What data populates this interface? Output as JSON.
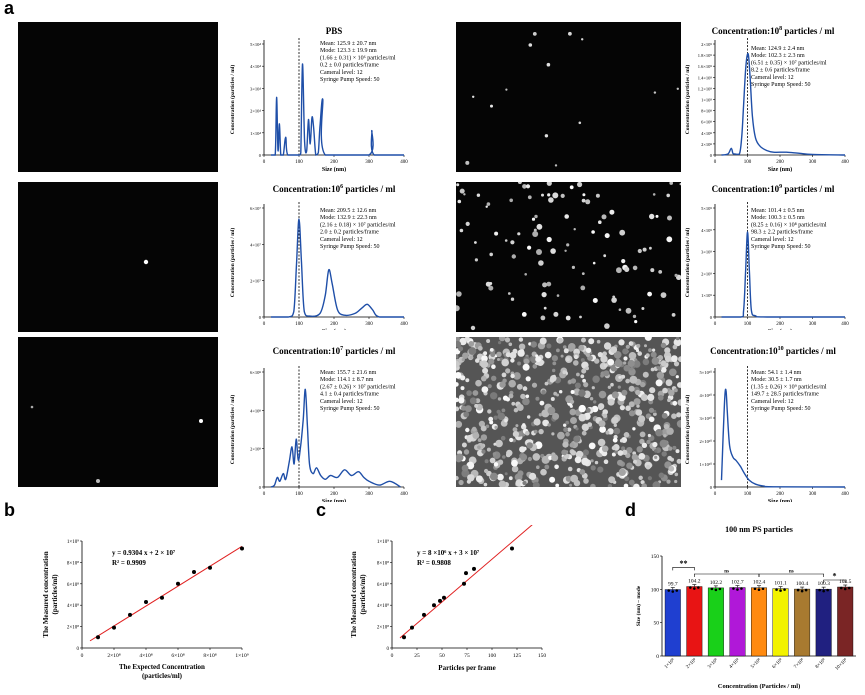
{
  "panel_labels": {
    "a": "a",
    "b": "b",
    "c": "c",
    "d": "d"
  },
  "nta_common": {
    "ylabel": "Concentration (particles / ml)",
    "xlabel": "Size (nm)",
    "xticks": [
      "0",
      "100",
      "200",
      "300",
      "400"
    ],
    "camera": "Cameral level: 12",
    "pump": "Syringe Pump Speed: 50"
  },
  "nta_plots": [
    {
      "id": "pbs",
      "title_main": "PBS",
      "title_sup": "",
      "title_suffix": "",
      "yticks": [
        "0",
        "1×10⁴",
        "2×10⁴",
        "3×10⁴",
        "4×10⁴",
        "5×10⁴"
      ],
      "ymax": 5,
      "stats": [
        "Mean: 125.9 ± 20.7 nm",
        "Mode: 123.3 ± 19.9 nm",
        "(1.66 ± 0.31) × 10⁶ particles/ml",
        "0.2 ± 0.0 particles/frame"
      ],
      "mode_x": 100,
      "curve": [
        [
          20,
          0
        ],
        [
          32,
          0
        ],
        [
          36,
          2.6
        ],
        [
          40,
          0.2
        ],
        [
          44,
          1.4
        ],
        [
          48,
          0
        ],
        [
          55,
          0
        ],
        [
          62,
          0.8
        ],
        [
          68,
          0
        ],
        [
          100,
          0
        ],
        [
          105,
          0.1
        ],
        [
          110,
          4.1
        ],
        [
          116,
          0.6
        ],
        [
          122,
          0.2
        ],
        [
          127,
          1.6
        ],
        [
          132,
          0.5
        ],
        [
          137,
          1.7
        ],
        [
          142,
          1.2
        ],
        [
          148,
          0
        ],
        [
          155,
          0.1
        ],
        [
          160,
          1.3
        ],
        [
          168,
          2.5
        ],
        [
          175,
          0
        ],
        [
          300,
          0
        ],
        [
          308,
          1.1
        ],
        [
          315,
          0
        ],
        [
          400,
          0
        ]
      ]
    },
    {
      "id": "c6",
      "title_main": "Concentration:10",
      "title_sup": "6",
      "title_suffix": " particles / ml",
      "yticks": [
        "0",
        "2×10⁷",
        "4×10⁷",
        "6×10⁷"
      ],
      "ymax": 6,
      "stats": [
        "Mean: 209.5 ± 12.6 nm",
        "Mode: 132.9 ± 22.3 nm",
        "(2.16 ± 0.18) × 10⁷ particles/ml",
        "2.0 ± 0.2 particles/frame"
      ],
      "mode_x": 100,
      "curve": [
        [
          20,
          0
        ],
        [
          70,
          0
        ],
        [
          85,
          0.3
        ],
        [
          93,
          3
        ],
        [
          100,
          5.4
        ],
        [
          107,
          3
        ],
        [
          115,
          0.3
        ],
        [
          130,
          0.05
        ],
        [
          160,
          0.2
        ],
        [
          175,
          1.2
        ],
        [
          185,
          2.6
        ],
        [
          195,
          1.8
        ],
        [
          210,
          0.4
        ],
        [
          230,
          0.1
        ],
        [
          260,
          0.2
        ],
        [
          280,
          0.5
        ],
        [
          295,
          0.7
        ],
        [
          310,
          0.4
        ],
        [
          330,
          0
        ],
        [
          400,
          0
        ]
      ]
    },
    {
      "id": "c7",
      "title_main": "Concentration:10",
      "title_sup": "7",
      "title_suffix": " particles / ml",
      "yticks": [
        "0",
        "2×10⁸",
        "4×10⁸",
        "6×10⁸"
      ],
      "ymax": 6,
      "stats": [
        "Mean: 155.7 ± 21.6 nm",
        "Mode: 114.1 ± 8.7 nm",
        "(2.67 ± 0.26) × 10⁷ particles/ml",
        "4.1 ± 0.4 particles/frame"
      ],
      "mode_x": 100,
      "curve": [
        [
          20,
          0
        ],
        [
          30,
          0.1
        ],
        [
          38,
          0.5
        ],
        [
          45,
          0.3
        ],
        [
          55,
          0.7
        ],
        [
          62,
          0.4
        ],
        [
          72,
          1.3
        ],
        [
          80,
          2.1
        ],
        [
          86,
          1.2
        ],
        [
          92,
          2.5
        ],
        [
          98,
          1.4
        ],
        [
          105,
          2.2
        ],
        [
          112,
          3.5
        ],
        [
          118,
          5.1
        ],
        [
          124,
          3.2
        ],
        [
          130,
          1.2
        ],
        [
          140,
          0.7
        ],
        [
          150,
          1
        ],
        [
          162,
          0.6
        ],
        [
          175,
          0.4
        ],
        [
          190,
          0.6
        ],
        [
          210,
          0.5
        ],
        [
          230,
          0.9
        ],
        [
          250,
          0.6
        ],
        [
          270,
          0.8
        ],
        [
          285,
          0.5
        ],
        [
          300,
          0.3
        ],
        [
          330,
          0.1
        ],
        [
          360,
          0.3
        ],
        [
          390,
          0
        ]
      ]
    },
    {
      "id": "c8",
      "title_main": "Concentration:10",
      "title_sup": "8",
      "title_suffix": " particles / ml",
      "yticks": [
        "0",
        "2×10⁸",
        "4×10⁸",
        "6×10⁸",
        "8×10⁸",
        "1×10⁹",
        "1.2×10⁹",
        "1.4×10⁹",
        "1.6×10⁹",
        "1.8×10⁹",
        "2×10⁹"
      ],
      "ymax": 2,
      "stats": [
        "Mean: 124.9 ± 2.4 nm",
        "Mode: 102.3 ± 2.3 nm",
        "(6.51 ± 0.35) × 10⁷ particles/ml",
        "8.2 ± 0.6 particles/frame"
      ],
      "mode_x": 100,
      "curve": [
        [
          20,
          0
        ],
        [
          40,
          0.02
        ],
        [
          50,
          0.12
        ],
        [
          55,
          0.03
        ],
        [
          60,
          0.02
        ],
        [
          75,
          0.02
        ],
        [
          82,
          0.3
        ],
        [
          88,
          0.9
        ],
        [
          95,
          1.6
        ],
        [
          102,
          1.82
        ],
        [
          108,
          1.4
        ],
        [
          115,
          0.7
        ],
        [
          125,
          0.3
        ],
        [
          140,
          0.15
        ],
        [
          160,
          0.08
        ],
        [
          180,
          0.05
        ],
        [
          220,
          0.05
        ],
        [
          260,
          0.03
        ],
        [
          300,
          0.01
        ],
        [
          400,
          0
        ]
      ]
    },
    {
      "id": "c9",
      "title_main": "Concentration:10",
      "title_sup": "9",
      "title_suffix": " particles / ml",
      "yticks": [
        "0",
        "1×10⁹",
        "2×10⁹",
        "3×10⁹",
        "4×10⁹",
        "5×10⁹"
      ],
      "ymax": 5,
      "stats": [
        "Mean: 101.4 ± 0.5 nm",
        "Mode: 100.3 ± 0.5 nm",
        "(8.25 ± 0.16) × 10⁸ particles/ml",
        "98.3 ± 2.2 particles/frame"
      ],
      "mode_x": 100,
      "curve": [
        [
          20,
          0
        ],
        [
          80,
          0
        ],
        [
          88,
          0.3
        ],
        [
          94,
          2
        ],
        [
          100,
          3.9
        ],
        [
          106,
          2
        ],
        [
          112,
          0.3
        ],
        [
          125,
          0.05
        ],
        [
          160,
          0
        ],
        [
          400,
          0
        ]
      ]
    },
    {
      "id": "c10",
      "title_main": "Concentration:10",
      "title_sup": "10",
      "title_suffix": " particles / ml",
      "yticks": [
        "0",
        "1×10¹⁰",
        "2×10¹⁰",
        "3×10¹⁰",
        "4×10¹⁰",
        "5×10¹⁰"
      ],
      "ymax": 5,
      "stats": [
        "Mean: 54.1 ± 1.4 nm",
        "Mode: 30.5 ± 1.7 nm",
        "(1.35 ± 0.26) × 10⁹ particles/ml",
        "149.7 ± 28.5 particles/frame"
      ],
      "mode_x": 100,
      "curve": [
        [
          20,
          0.3
        ],
        [
          25,
          2.2
        ],
        [
          30,
          3.9
        ],
        [
          34,
          4.2
        ],
        [
          38,
          3.2
        ],
        [
          45,
          1.8
        ],
        [
          55,
          1.3
        ],
        [
          65,
          1.15
        ],
        [
          78,
          0.9
        ],
        [
          90,
          0.6
        ],
        [
          105,
          0.3
        ],
        [
          125,
          0.12
        ],
        [
          150,
          0.04
        ],
        [
          180,
          0.01
        ],
        [
          400,
          0
        ]
      ]
    }
  ],
  "chart_data": [
    {
      "type": "scatter",
      "panel": "b",
      "xlabel": "The Expected Concentration (particles/ml)",
      "ylabel": "The Measured concentration (particles/ml)",
      "xticks": [
        "0",
        "2×10⁸",
        "4×10⁸",
        "6×10⁸",
        "8×10⁸",
        "1×10⁹"
      ],
      "yticks": [
        "0",
        "2×10⁸",
        "4×10⁸",
        "6×10⁸",
        "8×10⁸",
        "1×10⁹"
      ],
      "xlim": [
        0,
        1.0
      ],
      "ylim": [
        0,
        1.0
      ],
      "units": "1×10⁹",
      "x": [
        0.1,
        0.2,
        0.3,
        0.4,
        0.5,
        0.6,
        0.7,
        0.8,
        1.0
      ],
      "y": [
        0.1,
        0.19,
        0.31,
        0.43,
        0.47,
        0.6,
        0.71,
        0.75,
        0.93
      ],
      "fit": {
        "slope": 0.9304,
        "intercept": 0.02
      },
      "equation": "y = 0.9304 x + 2 × 10⁷",
      "r2": "R² = 0.9909"
    },
    {
      "type": "scatter",
      "panel": "c",
      "xlabel": "Particles per frame",
      "ylabel": "The Measured concentration (particles/ml)",
      "xticks": [
        "0",
        "25",
        "50",
        "75",
        "100",
        "125",
        "150"
      ],
      "yticks": [
        "0",
        "2×10⁸",
        "4×10⁸",
        "6×10⁸",
        "8×10⁸",
        "1×10⁹"
      ],
      "xlim": [
        0,
        150
      ],
      "ylim": [
        0,
        1.0
      ],
      "x": [
        12,
        20,
        32,
        42,
        48,
        52,
        72,
        74,
        82,
        120
      ],
      "y": [
        0.1,
        0.19,
        0.31,
        0.4,
        0.44,
        0.47,
        0.6,
        0.7,
        0.74,
        0.93
      ],
      "fit": {
        "slope": 0.008,
        "intercept": 0.03
      },
      "equation": "y = 8 ×10⁶ x + 3 × 10⁷",
      "r2": "R² = 0.9808"
    },
    {
      "type": "bar",
      "panel": "d",
      "title": "100 nm PS particles",
      "xlabel": "Concentration (Particles / ml)",
      "ylabel": "Size (nm) – mode",
      "ylim": [
        0,
        150
      ],
      "yticks": [
        "0",
        "50",
        "100",
        "150"
      ],
      "categories": [
        "1×10⁸",
        "2×10⁸",
        "3×10⁸",
        "4×10⁸",
        "5×10⁸",
        "6×10⁸",
        "7×10⁸",
        "8×10⁸",
        "10×10⁸"
      ],
      "values": [
        99.7,
        104.2,
        102.2,
        102.7,
        102.4,
        101.1,
        100.4,
        100.3,
        103.5
      ],
      "value_labels": [
        "99.7",
        "104.2",
        "102.2",
        "102.7",
        "102.4",
        "101.1",
        "100.4",
        "100.3",
        "103.5"
      ],
      "colors": [
        "#1f3fd0",
        "#e81414",
        "#19d019",
        "#b018d8",
        "#ff8a10",
        "#f2f200",
        "#a87a30",
        "#202080",
        "#7a2525"
      ],
      "significance": [
        {
          "from": 0,
          "to": 1,
          "label": "**",
          "level": 133
        },
        {
          "from": 1,
          "to": 4,
          "label": "ns",
          "level": 123
        },
        {
          "from": 4,
          "to": 7,
          "label": "ns",
          "level": 123
        },
        {
          "from": 7,
          "to": 8,
          "label": "*",
          "level": 114
        }
      ]
    }
  ]
}
